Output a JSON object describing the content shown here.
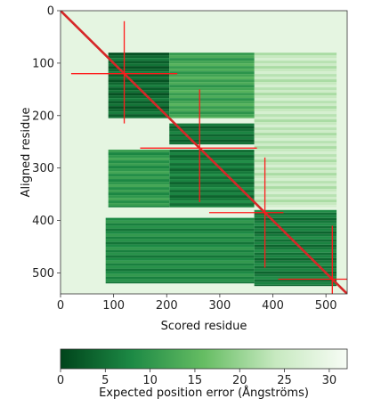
{
  "chart_data": {
    "type": "heatmap",
    "title": "",
    "xlabel": "Scored residue",
    "ylabel": "Aligned residue",
    "xlim": [
      0,
      540
    ],
    "ylim": [
      0,
      540
    ],
    "y_inverted": true,
    "x_ticks": [
      0,
      100,
      200,
      300,
      400,
      500
    ],
    "y_ticks": [
      0,
      100,
      200,
      300,
      400,
      500
    ],
    "colorbar": {
      "label": "Expected position error (Ångströms)",
      "min": 0,
      "max": 32,
      "ticks": [
        0,
        5,
        10,
        15,
        20,
        25,
        30
      ],
      "low_color": "#00441b",
      "high_color": "#f7fcf5"
    },
    "blocks": [
      {
        "x": [
          90,
          205
        ],
        "y": [
          80,
          205
        ],
        "error": 4
      },
      {
        "x": [
          205,
          365
        ],
        "y": [
          215,
          255
        ],
        "error": 5
      },
      {
        "x": [
          205,
          365
        ],
        "y": [
          265,
          375
        ],
        "error": 6
      },
      {
        "x": [
          365,
          520
        ],
        "y": [
          380,
          525
        ],
        "error": 6
      },
      {
        "x": [
          85,
          365
        ],
        "y": [
          395,
          520
        ],
        "error": 8
      },
      {
        "x": [
          365,
          520
        ],
        "y": [
          80,
          375
        ],
        "error": 24
      },
      {
        "x": [
          90,
          205
        ],
        "y": [
          265,
          375
        ],
        "error": 10
      },
      {
        "x": [
          205,
          365
        ],
        "y": [
          80,
          205
        ],
        "error": 12
      }
    ],
    "diagonal_color": "#d62728",
    "domain_markers": [
      {
        "center": 120,
        "x_extent": [
          20,
          220
        ],
        "y_extent": [
          20,
          215
        ]
      },
      {
        "center": 262,
        "x_extent": [
          150,
          370
        ],
        "y_extent": [
          150,
          365
        ]
      },
      {
        "center": 385,
        "x_extent": [
          280,
          420
        ],
        "y_extent": [
          280,
          490
        ]
      },
      {
        "center": 512,
        "x_extent": [
          410,
          540
        ],
        "y_extent": [
          410,
          540
        ]
      }
    ]
  }
}
